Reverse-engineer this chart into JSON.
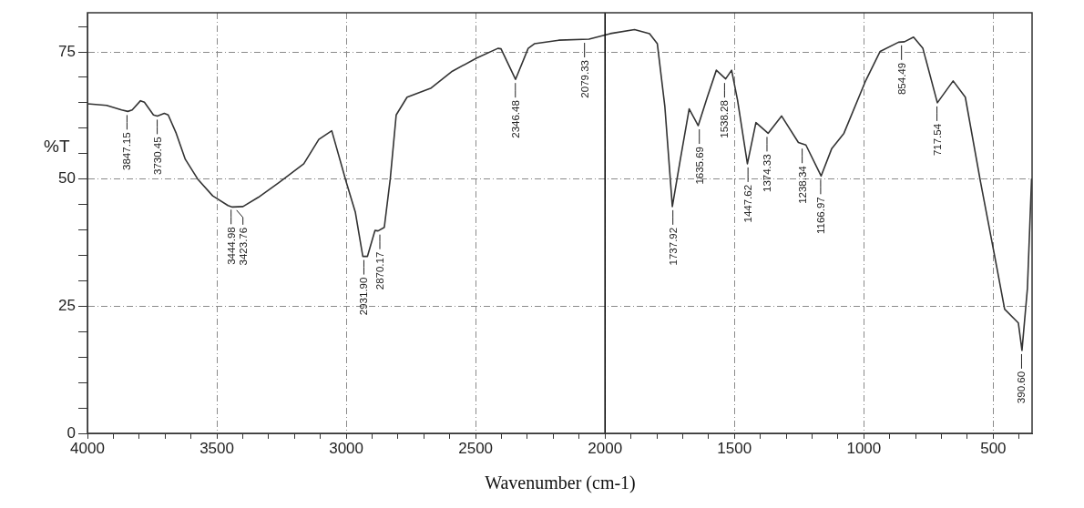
{
  "chart_data": {
    "type": "line",
    "xlabel": "Wavenumber (cm-1)",
    "ylabel": "%T",
    "xlim": [
      4000,
      350
    ],
    "ylim": [
      0,
      82.7
    ],
    "xticks": [
      4000,
      {
        "value": 3900,
        "label": null
      },
      {
        "value": 3800,
        "label": null
      },
      {
        "value": 3700,
        "label": null
      },
      {
        "value": 3600,
        "label": null
      },
      3500,
      {
        "value": 3400,
        "label": null
      },
      {
        "value": 3300,
        "label": null
      },
      {
        "value": 3200,
        "label": null
      },
      {
        "value": 3100,
        "label": null
      },
      3000,
      {
        "value": 2900,
        "label": null
      },
      {
        "value": 2800,
        "label": null
      },
      {
        "value": 2700,
        "label": null
      },
      {
        "value": 2600,
        "label": null
      },
      2500,
      {
        "value": 2400,
        "label": null
      },
      {
        "value": 2300,
        "label": null
      },
      {
        "value": 2200,
        "label": null
      },
      {
        "value": 2100,
        "label": null
      },
      2000,
      {
        "value": 1900,
        "label": null
      },
      {
        "value": 1800,
        "label": null
      },
      {
        "value": 1700,
        "label": null
      },
      {
        "value": 1600,
        "label": null
      },
      1500,
      {
        "value": 1400,
        "label": null
      },
      {
        "value": 1300,
        "label": null
      },
      {
        "value": 1200,
        "label": null
      },
      {
        "value": 1100,
        "label": null
      },
      1000,
      {
        "value": 900,
        "label": null
      },
      {
        "value": 800,
        "label": null
      },
      {
        "value": 700,
        "label": null
      },
      {
        "value": 600,
        "label": null
      },
      500,
      {
        "value": 400,
        "label": null
      }
    ],
    "yticks": [
      0,
      {
        "value": 5,
        "label": null
      },
      {
        "value": 10,
        "label": null
      },
      {
        "value": 15,
        "label": null
      },
      {
        "value": 20,
        "label": null
      },
      25,
      {
        "value": 30,
        "label": null
      },
      {
        "value": 35,
        "label": null
      },
      {
        "value": 40,
        "label": null
      },
      {
        "value": 45,
        "label": null
      },
      50,
      {
        "value": 55,
        "label": null
      },
      {
        "value": 60,
        "label": null
      },
      {
        "value": 65,
        "label": null
      },
      {
        "value": 70,
        "label": null
      },
      75,
      {
        "value": 80,
        "label": null
      }
    ],
    "grid": true,
    "legend": false,
    "marker": "none",
    "line_style": "solid",
    "ref_lines": [
      {
        "axis": "x",
        "value": 2000,
        "color": "#000000",
        "line_style": "solid"
      }
    ],
    "series": [
      {
        "color": "#333333",
        "x": [
          4000,
          3926,
          3868,
          3844,
          3827,
          3795,
          3780,
          3745,
          3730,
          3703,
          3688,
          3657,
          3622,
          3574,
          3516,
          3457,
          3440,
          3399,
          3340,
          3258,
          3164,
          3106,
          3056,
          3000,
          2965,
          2936,
          2918,
          2889,
          2877,
          2853,
          2830,
          2807,
          2765,
          2672,
          2590,
          2496,
          2414,
          2402,
          2346,
          2297,
          2273,
          2179,
          2062,
          1980,
          1886,
          1828,
          1798,
          1769,
          1740,
          1710,
          1675,
          1640,
          1605,
          1570,
          1534,
          1511,
          1488,
          1450,
          1417,
          1370,
          1318,
          1253,
          1224,
          1165,
          1124,
          1077,
          995,
          937,
          866,
          843,
          808,
          772,
          716,
          655,
          608,
          549,
          491,
          456,
          403,
          389,
          368,
          352
        ],
        "values": [
          64.8,
          64.5,
          63.6,
          63.3,
          63.6,
          65.4,
          65.1,
          62.6,
          62.4,
          62.9,
          62.6,
          59.0,
          53.9,
          50.0,
          46.7,
          44.8,
          44.5,
          44.6,
          46.4,
          49.4,
          53.0,
          57.8,
          59.5,
          49.4,
          43.5,
          34.8,
          34.8,
          39.9,
          39.8,
          40.5,
          50.0,
          62.6,
          66.1,
          67.9,
          71.2,
          73.8,
          75.7,
          75.6,
          69.6,
          75.7,
          76.6,
          77.3,
          77.5,
          78.6,
          79.4,
          78.6,
          76.6,
          64.3,
          44.6,
          53.6,
          63.8,
          60.5,
          66.1,
          71.4,
          69.7,
          71.4,
          65.5,
          53.0,
          61.1,
          59.0,
          62.4,
          57.2,
          56.7,
          50.6,
          56.0,
          59.0,
          69.1,
          75.1,
          76.9,
          77.0,
          77.9,
          75.7,
          65.0,
          69.3,
          66.1,
          49.4,
          33.9,
          24.4,
          21.7,
          16.3,
          28.5,
          50.0
        ]
      }
    ],
    "annotations": [
      {
        "text": "3847.15",
        "x": 3847.15,
        "y": 63.3
      },
      {
        "text": "3730.45",
        "x": 3730.45,
        "y": 62.4
      },
      {
        "text": "3444.98",
        "x": 3444.98,
        "y": 44.7
      },
      {
        "text": "3423.76",
        "x": 3423.76,
        "y": 44.6
      },
      {
        "text": "2931.90",
        "x": 2931.9,
        "y": 34.8
      },
      {
        "text": "2870.17",
        "x": 2870.17,
        "y": 39.8
      },
      {
        "text": "2346.48",
        "x": 2346.48,
        "y": 69.6
      },
      {
        "text": "2079.33",
        "x": 2079.33,
        "y": 77.5
      },
      {
        "text": "1737.92",
        "x": 1737.92,
        "y": 44.6
      },
      {
        "text": "1635.69",
        "x": 1635.69,
        "y": 60.5
      },
      {
        "text": "1538.28",
        "x": 1538.28,
        "y": 69.6
      },
      {
        "text": "1447.62",
        "x": 1447.62,
        "y": 53.0
      },
      {
        "text": "1374.33",
        "x": 1374.33,
        "y": 59.0
      },
      {
        "text": "1238.34",
        "x": 1238.34,
        "y": 56.7
      },
      {
        "text": "1166.97",
        "x": 1166.97,
        "y": 50.6
      },
      {
        "text": "854.49",
        "x": 854.49,
        "y": 77.0
      },
      {
        "text": "717.54",
        "x": 717.54,
        "y": 65.0
      },
      {
        "text": "390.60",
        "x": 390.6,
        "y": 16.3
      }
    ]
  }
}
